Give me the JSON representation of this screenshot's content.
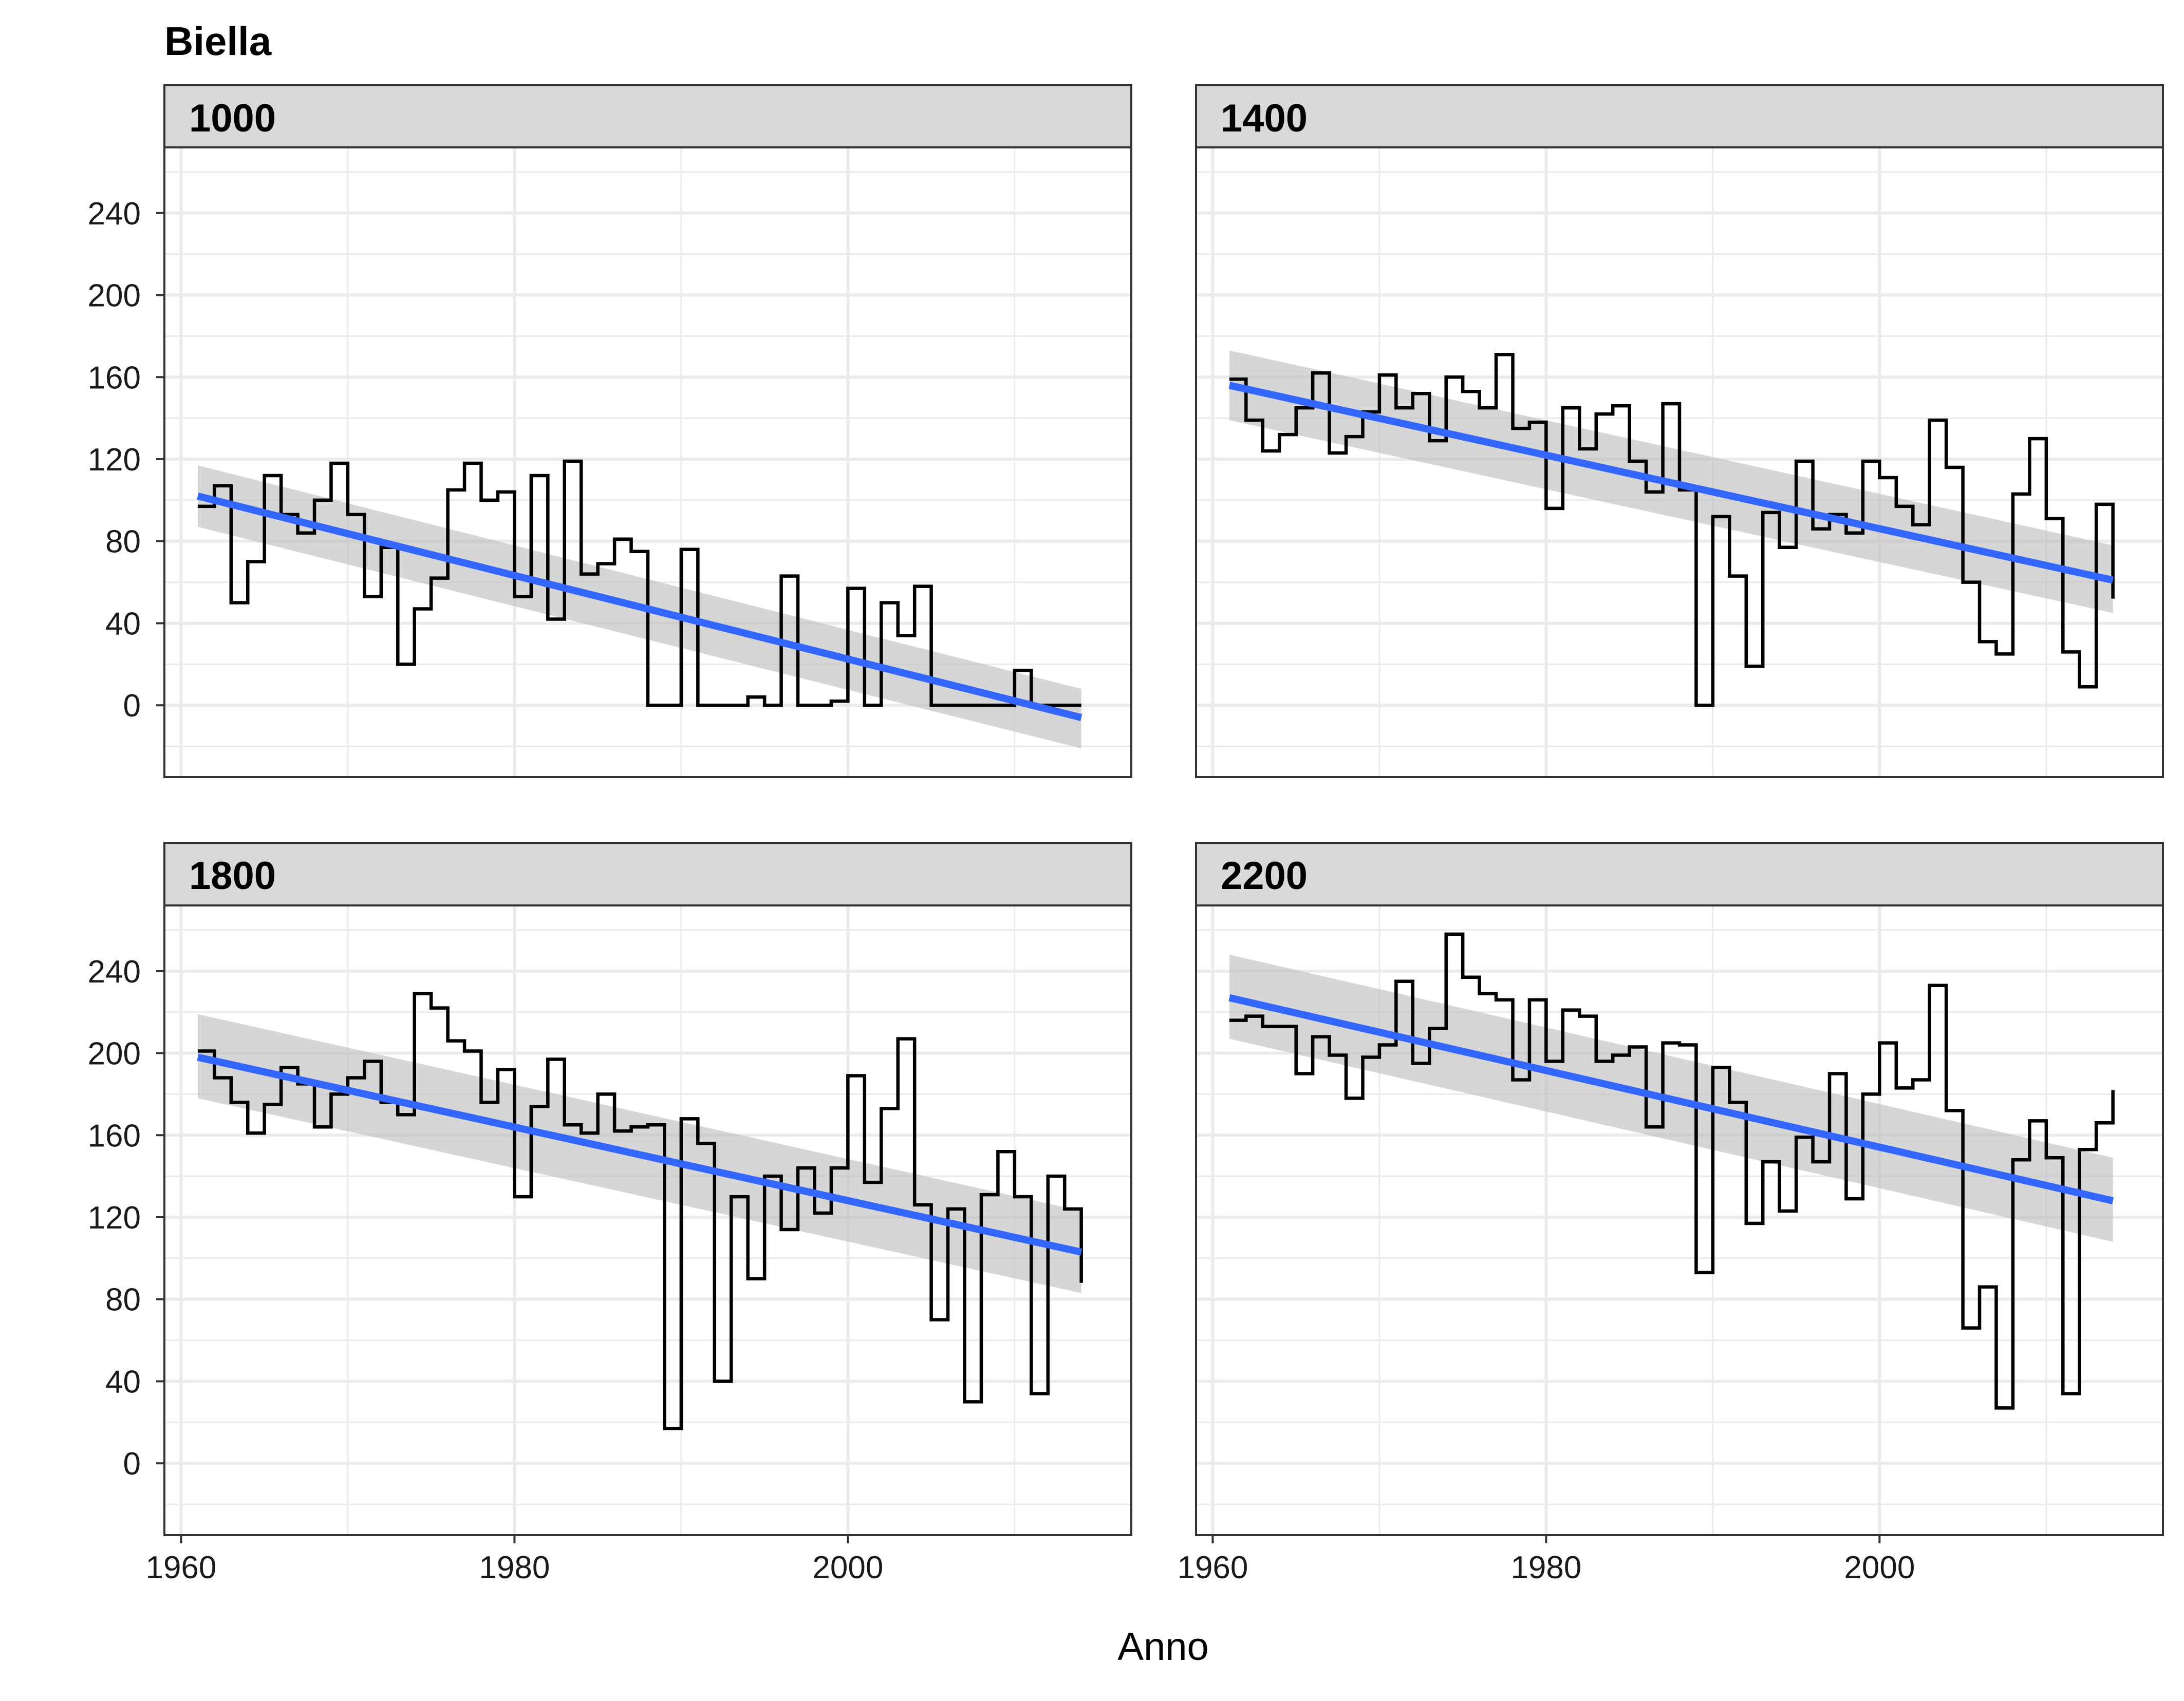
{
  "chart_data": {
    "type": "line",
    "title": "Biella",
    "xlabel": "Anno",
    "ylabel": "",
    "xlim": [
      1959,
      2017
    ],
    "ylim": [
      -35,
      272
    ],
    "x_ticks": [
      1960,
      1980,
      2000
    ],
    "y_ticks": [
      0,
      40,
      80,
      120,
      160,
      200,
      240
    ],
    "grid": true,
    "legend": "none",
    "colors": {
      "step_line": "#000000",
      "trend_line": "#3366FF",
      "ci_band": "#BBBBBB",
      "strip_fill": "#D9D9D9",
      "grid": "#EBEBEB"
    },
    "panels": [
      {
        "label": "1000",
        "years": [
          1961,
          1962,
          1963,
          1964,
          1965,
          1966,
          1967,
          1968,
          1969,
          1970,
          1971,
          1972,
          1973,
          1974,
          1975,
          1976,
          1977,
          1978,
          1979,
          1980,
          1981,
          1982,
          1983,
          1984,
          1985,
          1986,
          1987,
          1988,
          1989,
          1990,
          1991,
          1992,
          1993,
          1994,
          1995,
          1996,
          1997,
          1998,
          1999,
          2000,
          2001,
          2002,
          2003,
          2004,
          2005,
          2006,
          2007,
          2008,
          2009,
          2010,
          2011,
          2012,
          2013,
          2014
        ],
        "values": [
          97,
          107,
          50,
          70,
          112,
          93,
          84,
          100,
          118,
          93,
          53,
          77,
          20,
          47,
          62,
          105,
          118,
          100,
          104,
          53,
          112,
          42,
          119,
          64,
          69,
          81,
          75,
          0,
          0,
          76,
          0,
          0,
          0,
          4,
          0,
          63,
          0,
          0,
          2,
          57,
          0,
          50,
          34,
          58,
          0,
          0,
          0,
          0,
          0,
          17,
          0,
          0,
          0,
          0
        ],
        "trend": [
          102,
          -6
        ],
        "ci_upper": [
          117,
          8
        ],
        "ci_lower": [
          87,
          -21
        ]
      },
      {
        "label": "1400",
        "years": [
          1961,
          1962,
          1963,
          1964,
          1965,
          1966,
          1967,
          1968,
          1969,
          1970,
          1971,
          1972,
          1973,
          1974,
          1975,
          1976,
          1977,
          1978,
          1979,
          1980,
          1981,
          1982,
          1983,
          1984,
          1985,
          1986,
          1987,
          1988,
          1989,
          1990,
          1991,
          1992,
          1993,
          1994,
          1995,
          1996,
          1997,
          1998,
          1999,
          2000,
          2001,
          2002,
          2003,
          2004,
          2005,
          2006,
          2007,
          2008,
          2009,
          2010,
          2011,
          2012,
          2013,
          2014
        ],
        "values": [
          159,
          139,
          124,
          132,
          145,
          162,
          123,
          131,
          143,
          161,
          145,
          152,
          129,
          160,
          153,
          145,
          171,
          135,
          138,
          96,
          145,
          125,
          142,
          146,
          119,
          104,
          147,
          105,
          0,
          92,
          63,
          19,
          94,
          77,
          119,
          86,
          93,
          84,
          119,
          111,
          97,
          88,
          139,
          116,
          60,
          31,
          25,
          103,
          130,
          91,
          26,
          9,
          98,
          52
        ],
        "trend": [
          156,
          61
        ],
        "ci_upper": [
          173,
          78
        ],
        "ci_lower": [
          139,
          45
        ]
      },
      {
        "label": "1800",
        "years": [
          1961,
          1962,
          1963,
          1964,
          1965,
          1966,
          1967,
          1968,
          1969,
          1970,
          1971,
          1972,
          1973,
          1974,
          1975,
          1976,
          1977,
          1978,
          1979,
          1980,
          1981,
          1982,
          1983,
          1984,
          1985,
          1986,
          1987,
          1988,
          1989,
          1990,
          1991,
          1992,
          1993,
          1994,
          1995,
          1996,
          1997,
          1998,
          1999,
          2000,
          2001,
          2002,
          2003,
          2004,
          2005,
          2006,
          2007,
          2008,
          2009,
          2010,
          2011,
          2012,
          2013,
          2014
        ],
        "values": [
          201,
          188,
          176,
          161,
          175,
          193,
          185,
          164,
          180,
          188,
          196,
          176,
          170,
          229,
          222,
          206,
          201,
          176,
          192,
          130,
          174,
          197,
          165,
          161,
          180,
          162,
          164,
          165,
          17,
          168,
          156,
          40,
          130,
          90,
          140,
          114,
          144,
          122,
          144,
          189,
          137,
          173,
          207,
          126,
          70,
          124,
          30,
          131,
          152,
          130,
          34,
          140,
          124,
          88
        ],
        "trend": [
          198,
          103
        ],
        "ci_upper": [
          219,
          123
        ],
        "ci_lower": [
          178,
          83
        ]
      },
      {
        "label": "2200",
        "years": [
          1961,
          1962,
          1963,
          1964,
          1965,
          1966,
          1967,
          1968,
          1969,
          1970,
          1971,
          1972,
          1973,
          1974,
          1975,
          1976,
          1977,
          1978,
          1979,
          1980,
          1981,
          1982,
          1983,
          1984,
          1985,
          1986,
          1987,
          1988,
          1989,
          1990,
          1991,
          1992,
          1993,
          1994,
          1995,
          1996,
          1997,
          1998,
          1999,
          2000,
          2001,
          2002,
          2003,
          2004,
          2005,
          2006,
          2007,
          2008,
          2009,
          2010,
          2011,
          2012,
          2013,
          2014
        ],
        "values": [
          216,
          218,
          213,
          213,
          190,
          208,
          199,
          178,
          198,
          204,
          235,
          195,
          212,
          258,
          237,
          229,
          226,
          187,
          226,
          196,
          221,
          218,
          196,
          199,
          203,
          164,
          205,
          204,
          93,
          193,
          176,
          117,
          147,
          123,
          159,
          147,
          190,
          129,
          180,
          205,
          183,
          187,
          233,
          172,
          66,
          86,
          27,
          148,
          167,
          149,
          34,
          153,
          166,
          182
        ],
        "trend": [
          227,
          128
        ],
        "ci_upper": [
          248,
          149
        ],
        "ci_lower": [
          207,
          108
        ]
      }
    ]
  }
}
